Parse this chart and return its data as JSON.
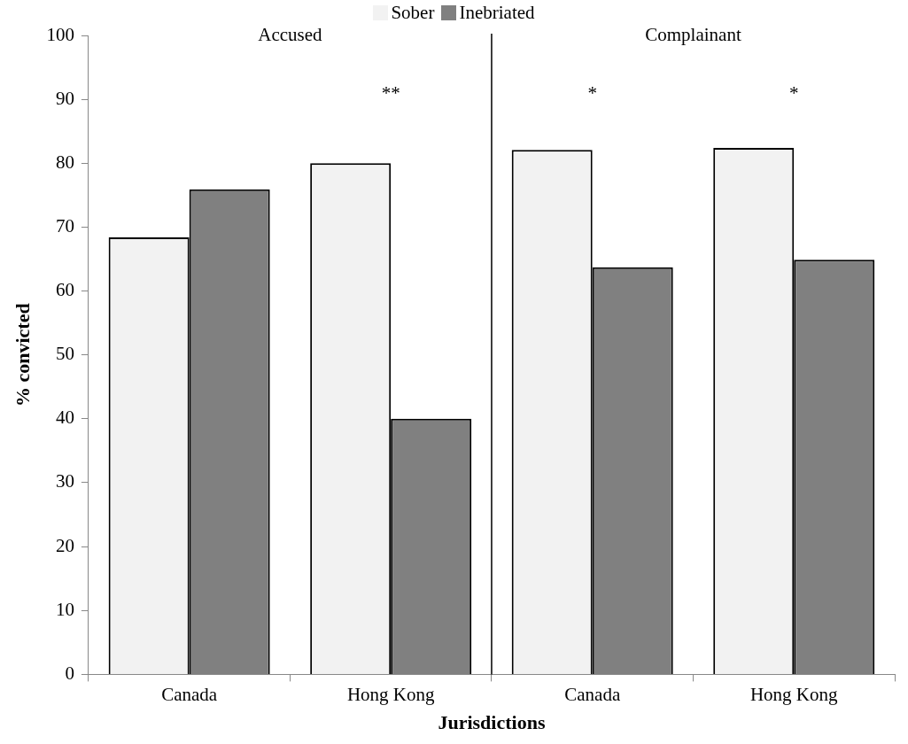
{
  "chart_data": {
    "type": "bar",
    "xlabel": "Jurisdictions",
    "ylabel": "% convicted",
    "categories": [
      "Canada",
      "Hong Kong",
      "Canada",
      "Hong Kong"
    ],
    "series": [
      {
        "name": "Sober",
        "color": "#f2f2f2",
        "values": [
          68.4,
          80,
          82.1,
          82.4
        ]
      },
      {
        "name": "Inebriated",
        "color": "#808080",
        "values": [
          75.9,
          40,
          63.7,
          64.9
        ]
      }
    ],
    "ylim": [
      0,
      100
    ],
    "yticks": [
      0,
      10,
      20,
      30,
      40,
      50,
      60,
      70,
      80,
      90,
      100
    ],
    "grid": false,
    "legend": "top",
    "annotations": [
      "Accused",
      "Complainant",
      "**",
      "*",
      "*"
    ]
  }
}
